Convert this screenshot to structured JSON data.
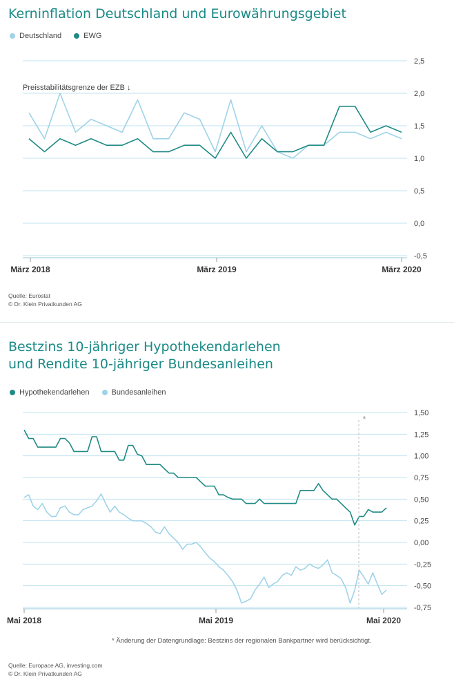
{
  "colors": {
    "teal": "#1f8a85",
    "light_blue": "#9fd3e8",
    "grid": "#bfe3ef",
    "axis": "#b9dbe7",
    "title": "#1a8a86"
  },
  "chart_data": [
    {
      "type": "line",
      "title": "Kerninflation Deutschland und Eurowährungsgebiet",
      "ylim": [
        -0.5,
        2.5
      ],
      "y_ticks": [
        "2,5",
        "2,0",
        "1,5",
        "1,0",
        "0,5",
        "0,0",
        "-0,5"
      ],
      "x_ticks": [
        "März 2018",
        "März 2019",
        "März 2020"
      ],
      "annotation": "Preisstabilitätsgrenze der EZB ↓",
      "legend": "top-left",
      "grid": true,
      "series": [
        {
          "name": "Deutschland",
          "values": [
            1.7,
            1.3,
            2.0,
            1.4,
            1.6,
            1.5,
            1.4,
            1.9,
            1.3,
            1.3,
            1.7,
            1.6,
            1.1,
            1.9,
            1.1,
            1.5,
            1.1,
            1.0,
            1.2,
            1.2,
            1.4,
            1.4,
            1.3,
            1.4,
            1.3
          ]
        },
        {
          "name": "EWG",
          "values": [
            1.3,
            1.1,
            1.3,
            1.2,
            1.3,
            1.2,
            1.2,
            1.3,
            1.1,
            1.1,
            1.2,
            1.2,
            1.0,
            1.4,
            1.0,
            1.3,
            1.1,
            1.1,
            1.2,
            1.2,
            1.8,
            1.8,
            1.4,
            1.5,
            1.4
          ]
        }
      ],
      "source_lines": [
        "Quelle: Eurostat",
        "© Dr. Klein Privatkunden AG"
      ]
    },
    {
      "type": "line",
      "title_lines": [
        "Bestzins 10-jähriger Hypothekendarlehen",
        "und Rendite 10-jähriger Bundesanleihen"
      ],
      "ylim": [
        -0.75,
        1.5
      ],
      "y_ticks": [
        "1,50",
        "1,25",
        "1,00",
        "0,75",
        "0,50",
        "0,25",
        "0,00",
        "-0,25",
        "-0,50",
        "-0,75"
      ],
      "x_ticks": [
        "Mai 2018",
        "Mai 2019",
        "Mai 2020"
      ],
      "marker_label": "*",
      "legend": "top-left",
      "grid": true,
      "series": [
        {
          "name": "Hypothekendarlehen",
          "values": [
            1.3,
            1.2,
            1.2,
            1.1,
            1.1,
            1.1,
            1.1,
            1.1,
            1.2,
            1.2,
            1.15,
            1.05,
            1.05,
            1.05,
            1.05,
            1.22,
            1.22,
            1.05,
            1.05,
            1.05,
            1.05,
            0.95,
            0.95,
            1.12,
            1.12,
            1.02,
            1.0,
            0.9,
            0.9,
            0.9,
            0.9,
            0.85,
            0.8,
            0.8,
            0.75,
            0.75,
            0.75,
            0.75,
            0.75,
            0.7,
            0.65,
            0.65,
            0.65,
            0.55,
            0.55,
            0.52,
            0.5,
            0.5,
            0.5,
            0.45,
            0.45,
            0.45,
            0.5,
            0.45,
            0.45,
            0.45,
            0.45,
            0.45,
            0.45,
            0.45,
            0.45,
            0.6,
            0.6,
            0.6,
            0.6,
            0.68,
            0.6,
            0.55,
            0.5,
            0.5,
            0.45,
            0.4,
            0.35,
            0.2,
            0.3,
            0.3,
            0.38,
            0.35,
            0.35,
            0.35,
            0.4
          ]
        },
        {
          "name": "Bundesanleihen",
          "values": [
            0.52,
            0.55,
            0.42,
            0.38,
            0.45,
            0.35,
            0.3,
            0.3,
            0.4,
            0.42,
            0.35,
            0.32,
            0.32,
            0.38,
            0.4,
            0.42,
            0.48,
            0.56,
            0.45,
            0.35,
            0.42,
            0.35,
            0.32,
            0.28,
            0.25,
            0.25,
            0.25,
            0.22,
            0.18,
            0.12,
            0.1,
            0.18,
            0.1,
            0.05,
            0.0,
            -0.08,
            -0.02,
            -0.02,
            0.0,
            -0.05,
            -0.12,
            -0.18,
            -0.22,
            -0.28,
            -0.32,
            -0.38,
            -0.45,
            -0.55,
            -0.7,
            -0.68,
            -0.65,
            -0.55,
            -0.48,
            -0.4,
            -0.52,
            -0.48,
            -0.45,
            -0.38,
            -0.35,
            -0.38,
            -0.28,
            -0.32,
            -0.3,
            -0.25,
            -0.28,
            -0.3,
            -0.26,
            -0.2,
            -0.35,
            -0.38,
            -0.42,
            -0.52,
            -0.7,
            -0.55,
            -0.32,
            -0.4,
            -0.48,
            -0.35,
            -0.48,
            -0.6,
            -0.55
          ]
        }
      ],
      "footnote": "*  Änderung der Datengrundlage: Bestzins der regionalen Bankpartner wird berücksichtigt.",
      "source_lines": [
        "Quelle: Europace AG, investing.com",
        "© Dr. Klein Privatkunden AG"
      ]
    }
  ]
}
